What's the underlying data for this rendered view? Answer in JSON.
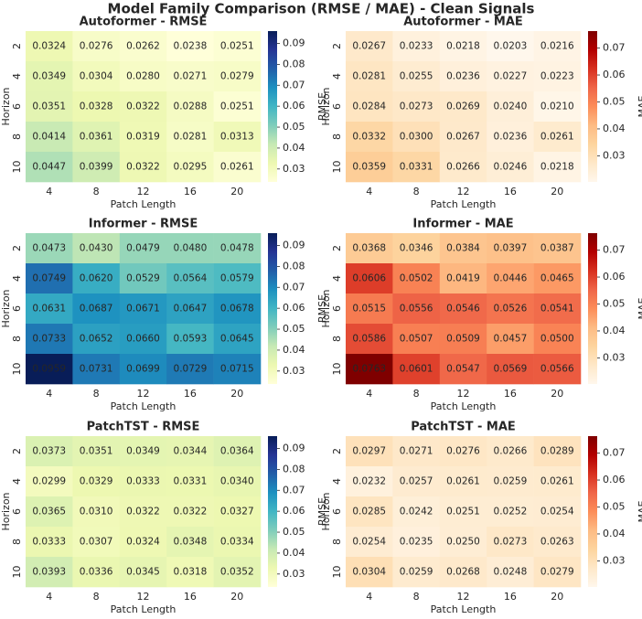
{
  "title": "Model Family Comparison (RMSE / MAE) - Clean Signals",
  "chart_data": [
    {
      "type": "heatmap",
      "title": "Autoformer - RMSE",
      "x_label": "Patch Length",
      "y_label": "Horizon",
      "colorbar_label": "RMSE",
      "x": [
        4,
        8,
        12,
        16,
        20
      ],
      "y": [
        2,
        4,
        6,
        8,
        10
      ],
      "values": [
        [
          0.0324,
          0.0276,
          0.0262,
          0.0238,
          0.0251
        ],
        [
          0.0349,
          0.0304,
          0.028,
          0.0271,
          0.0279
        ],
        [
          0.0351,
          0.0328,
          0.0322,
          0.0288,
          0.0251
        ],
        [
          0.0414,
          0.0361,
          0.0319,
          0.0281,
          0.0313
        ],
        [
          0.0447,
          0.0399,
          0.0322,
          0.0295,
          0.0261
        ]
      ],
      "value_labels": [
        [
          "0.0324",
          "0.0276",
          "0.0262",
          "0.0238",
          "0.0251"
        ],
        [
          "0.0349",
          "0.0304",
          "0.0280",
          "0.0271",
          "0.0279"
        ],
        [
          "0.0351",
          "0.0328",
          "0.0322",
          "0.0288",
          "0.0251"
        ],
        [
          "0.0414",
          "0.0361",
          "0.0319",
          "0.0281",
          "0.0313"
        ],
        [
          "0.0447",
          "0.0399",
          "0.0322",
          "0.0295",
          "0.0261"
        ]
      ],
      "clim": [
        0.0238,
        0.0959
      ],
      "cticks": [
        0.03,
        0.04,
        0.05,
        0.06,
        0.07,
        0.08,
        0.09
      ],
      "colormap": [
        "#ffffd9",
        "#edf8b1",
        "#c7e9b4",
        "#7fcdbb",
        "#41b6c4",
        "#1d91c0",
        "#225ea8",
        "#253494",
        "#081d58"
      ]
    },
    {
      "type": "heatmap",
      "title": "Autoformer - MAE",
      "x_label": "Patch Length",
      "y_label": "Horizon",
      "colorbar_label": "MAE",
      "x": [
        4,
        8,
        12,
        16,
        20
      ],
      "y": [
        2,
        4,
        6,
        8,
        10
      ],
      "values": [
        [
          0.0267,
          0.0233,
          0.0218,
          0.0203,
          0.0216
        ],
        [
          0.0281,
          0.0255,
          0.0236,
          0.0227,
          0.0223
        ],
        [
          0.0284,
          0.0273,
          0.0269,
          0.024,
          0.021
        ],
        [
          0.0332,
          0.03,
          0.0267,
          0.0236,
          0.0261
        ],
        [
          0.0359,
          0.0331,
          0.0266,
          0.0246,
          0.0218
        ]
      ],
      "value_labels": [
        [
          "0.0267",
          "0.0233",
          "0.0218",
          "0.0203",
          "0.0216"
        ],
        [
          "0.0281",
          "0.0255",
          "0.0236",
          "0.0227",
          "0.0223"
        ],
        [
          "0.0284",
          "0.0273",
          "0.0269",
          "0.0240",
          "0.0210"
        ],
        [
          "0.0332",
          "0.0300",
          "0.0267",
          "0.0236",
          "0.0261"
        ],
        [
          "0.0359",
          "0.0331",
          "0.0266",
          "0.0246",
          "0.0218"
        ]
      ],
      "clim": [
        0.0203,
        0.0763
      ],
      "cticks": [
        0.03,
        0.04,
        0.05,
        0.06,
        0.07
      ],
      "colormap": [
        "#fff7ec",
        "#fee8c8",
        "#fdd49e",
        "#fdbb84",
        "#fc8d59",
        "#ef6548",
        "#d7301f",
        "#b30000",
        "#7f0000"
      ]
    },
    {
      "type": "heatmap",
      "title": "Informer - RMSE",
      "x_label": "Patch Length",
      "y_label": "Horizon",
      "colorbar_label": "RMSE",
      "x": [
        4,
        8,
        12,
        16,
        20
      ],
      "y": [
        2,
        4,
        6,
        8,
        10
      ],
      "values": [
        [
          0.0473,
          0.043,
          0.0479,
          0.048,
          0.0478
        ],
        [
          0.0749,
          0.062,
          0.0529,
          0.0564,
          0.0579
        ],
        [
          0.0631,
          0.0687,
          0.0671,
          0.0647,
          0.0678
        ],
        [
          0.0733,
          0.0652,
          0.066,
          0.0593,
          0.0645
        ],
        [
          0.0959,
          0.0731,
          0.0699,
          0.0729,
          0.0715
        ]
      ],
      "value_labels": [
        [
          "0.0473",
          "0.0430",
          "0.0479",
          "0.0480",
          "0.0478"
        ],
        [
          "0.0749",
          "0.0620",
          "0.0529",
          "0.0564",
          "0.0579"
        ],
        [
          "0.0631",
          "0.0687",
          "0.0671",
          "0.0647",
          "0.0678"
        ],
        [
          "0.0733",
          "0.0652",
          "0.0660",
          "0.0593",
          "0.0645"
        ],
        [
          "0.0959",
          "0.0731",
          "0.0699",
          "0.0729",
          "0.0715"
        ]
      ],
      "clim": [
        0.0238,
        0.0959
      ],
      "cticks": [
        0.03,
        0.04,
        0.05,
        0.06,
        0.07,
        0.08,
        0.09
      ],
      "colormap": [
        "#ffffd9",
        "#edf8b1",
        "#c7e9b4",
        "#7fcdbb",
        "#41b6c4",
        "#1d91c0",
        "#225ea8",
        "#253494",
        "#081d58"
      ]
    },
    {
      "type": "heatmap",
      "title": "Informer - MAE",
      "x_label": "Patch Length",
      "y_label": "Horizon",
      "colorbar_label": "MAE",
      "x": [
        4,
        8,
        12,
        16,
        20
      ],
      "y": [
        2,
        4,
        6,
        8,
        10
      ],
      "values": [
        [
          0.0368,
          0.0346,
          0.0384,
          0.0397,
          0.0387
        ],
        [
          0.0606,
          0.0502,
          0.0419,
          0.0446,
          0.0465
        ],
        [
          0.0515,
          0.0556,
          0.0546,
          0.0526,
          0.0541
        ],
        [
          0.0586,
          0.0507,
          0.0509,
          0.0457,
          0.05
        ],
        [
          0.0763,
          0.0601,
          0.0547,
          0.0569,
          0.0566
        ]
      ],
      "value_labels": [
        [
          "0.0368",
          "0.0346",
          "0.0384",
          "0.0397",
          "0.0387"
        ],
        [
          "0.0606",
          "0.0502",
          "0.0419",
          "0.0446",
          "0.0465"
        ],
        [
          "0.0515",
          "0.0556",
          "0.0546",
          "0.0526",
          "0.0541"
        ],
        [
          "0.0586",
          "0.0507",
          "0.0509",
          "0.0457",
          "0.0500"
        ],
        [
          "0.0763",
          "0.0601",
          "0.0547",
          "0.0569",
          "0.0566"
        ]
      ],
      "clim": [
        0.0203,
        0.0763
      ],
      "cticks": [
        0.03,
        0.04,
        0.05,
        0.06,
        0.07
      ],
      "colormap": [
        "#fff7ec",
        "#fee8c8",
        "#fdd49e",
        "#fdbb84",
        "#fc8d59",
        "#ef6548",
        "#d7301f",
        "#b30000",
        "#7f0000"
      ]
    },
    {
      "type": "heatmap",
      "title": "PatchTST - RMSE",
      "x_label": "Patch Length",
      "y_label": "Horizon",
      "colorbar_label": "RMSE",
      "x": [
        4,
        8,
        12,
        16,
        20
      ],
      "y": [
        2,
        4,
        6,
        8,
        10
      ],
      "values": [
        [
          0.0373,
          0.0351,
          0.0349,
          0.0344,
          0.0364
        ],
        [
          0.0299,
          0.0329,
          0.0333,
          0.0331,
          0.034
        ],
        [
          0.0365,
          0.031,
          0.0322,
          0.0322,
          0.0327
        ],
        [
          0.0333,
          0.0307,
          0.0324,
          0.0348,
          0.0334
        ],
        [
          0.0393,
          0.0336,
          0.0345,
          0.0318,
          0.0352
        ]
      ],
      "value_labels": [
        [
          "0.0373",
          "0.0351",
          "0.0349",
          "0.0344",
          "0.0364"
        ],
        [
          "0.0299",
          "0.0329",
          "0.0333",
          "0.0331",
          "0.0340"
        ],
        [
          "0.0365",
          "0.0310",
          "0.0322",
          "0.0322",
          "0.0327"
        ],
        [
          "0.0333",
          "0.0307",
          "0.0324",
          "0.0348",
          "0.0334"
        ],
        [
          "0.0393",
          "0.0336",
          "0.0345",
          "0.0318",
          "0.0352"
        ]
      ],
      "clim": [
        0.0238,
        0.0959
      ],
      "cticks": [
        0.03,
        0.04,
        0.05,
        0.06,
        0.07,
        0.08,
        0.09
      ],
      "colormap": [
        "#ffffd9",
        "#edf8b1",
        "#c7e9b4",
        "#7fcdbb",
        "#41b6c4",
        "#1d91c0",
        "#225ea8",
        "#253494",
        "#081d58"
      ]
    },
    {
      "type": "heatmap",
      "title": "PatchTST - MAE",
      "x_label": "Patch Length",
      "y_label": "Horizon",
      "colorbar_label": "MAE",
      "x": [
        4,
        8,
        12,
        16,
        20
      ],
      "y": [
        2,
        4,
        6,
        8,
        10
      ],
      "values": [
        [
          0.0297,
          0.0271,
          0.0276,
          0.0266,
          0.0289
        ],
        [
          0.0232,
          0.0257,
          0.0261,
          0.0259,
          0.0261
        ],
        [
          0.0285,
          0.0242,
          0.0251,
          0.0252,
          0.0254
        ],
        [
          0.0254,
          0.0235,
          0.025,
          0.0273,
          0.0263
        ],
        [
          0.0304,
          0.0259,
          0.0268,
          0.0248,
          0.0279
        ]
      ],
      "value_labels": [
        [
          "0.0297",
          "0.0271",
          "0.0276",
          "0.0266",
          "0.0289"
        ],
        [
          "0.0232",
          "0.0257",
          "0.0261",
          "0.0259",
          "0.0261"
        ],
        [
          "0.0285",
          "0.0242",
          "0.0251",
          "0.0252",
          "0.0254"
        ],
        [
          "0.0254",
          "0.0235",
          "0.0250",
          "0.0273",
          "0.0263"
        ],
        [
          "0.0304",
          "0.0259",
          "0.0268",
          "0.0248",
          "0.0279"
        ]
      ],
      "clim": [
        0.0203,
        0.0763
      ],
      "cticks": [
        0.03,
        0.04,
        0.05,
        0.06,
        0.07
      ],
      "colormap": [
        "#fff7ec",
        "#fee8c8",
        "#fdd49e",
        "#fdbb84",
        "#fc8d59",
        "#ef6548",
        "#d7301f",
        "#b30000",
        "#7f0000"
      ]
    }
  ]
}
